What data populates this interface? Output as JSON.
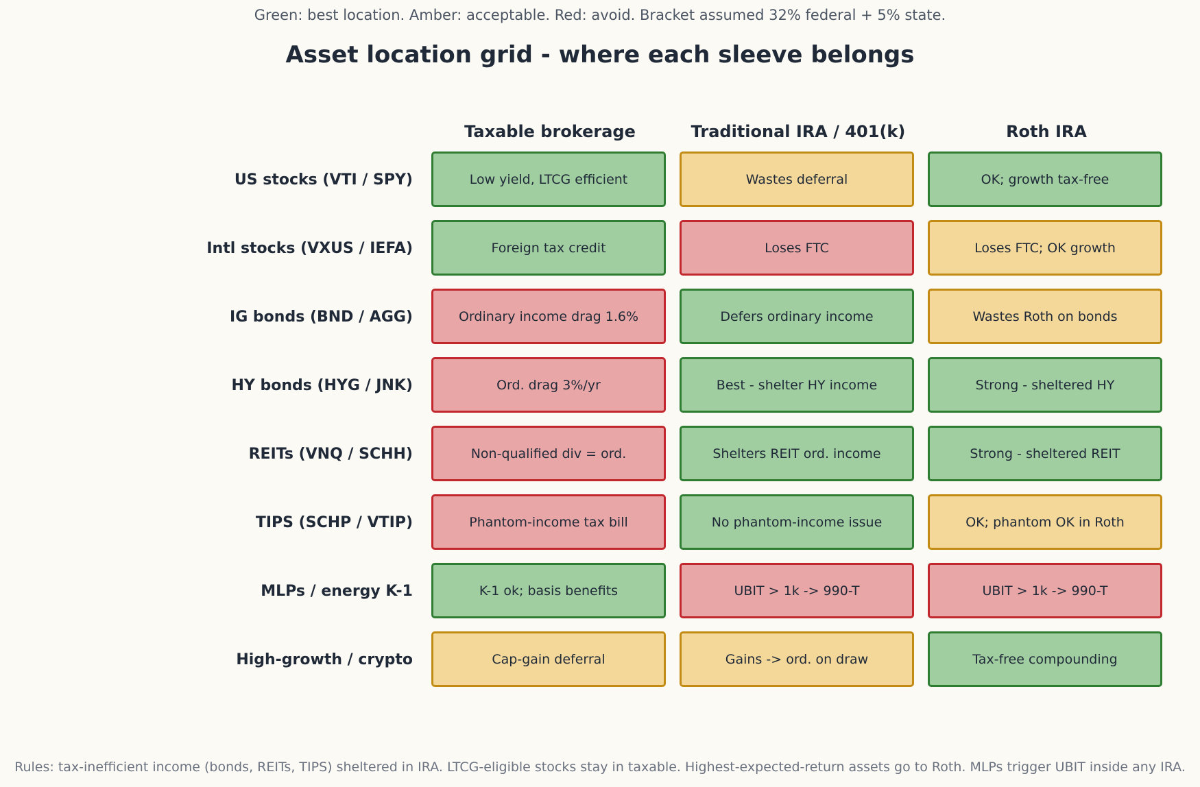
{
  "legend_note": "Green: best location.  Amber: acceptable.  Red: avoid.  Bracket assumed 32% federal + 5% state.",
  "title": "Asset location grid - where each sleeve belongs",
  "columns": [
    "Taxable brokerage",
    "Traditional IRA / 401(k)",
    "Roth IRA"
  ],
  "status_colors": {
    "green": "#a0cea1",
    "amber": "#f3d899",
    "red": "#e8a6a6"
  },
  "rows": [
    {
      "label": "US stocks (VTI / SPY)",
      "cells": [
        {
          "text": "Low yield, LTCG efficient",
          "status": "green"
        },
        {
          "text": "Wastes deferral",
          "status": "amber"
        },
        {
          "text": "OK; growth tax-free",
          "status": "green"
        }
      ]
    },
    {
      "label": "Intl stocks (VXUS / IEFA)",
      "cells": [
        {
          "text": "Foreign tax credit",
          "status": "green"
        },
        {
          "text": "Loses FTC",
          "status": "red"
        },
        {
          "text": "Loses FTC; OK growth",
          "status": "amber"
        }
      ]
    },
    {
      "label": "IG bonds (BND / AGG)",
      "cells": [
        {
          "text": "Ordinary income drag 1.6%",
          "status": "red"
        },
        {
          "text": "Defers ordinary income",
          "status": "green"
        },
        {
          "text": "Wastes Roth on bonds",
          "status": "amber"
        }
      ]
    },
    {
      "label": "HY bonds (HYG / JNK)",
      "cells": [
        {
          "text": "Ord. drag 3%/yr",
          "status": "red"
        },
        {
          "text": "Best - shelter HY income",
          "status": "green"
        },
        {
          "text": "Strong - sheltered HY",
          "status": "green"
        }
      ]
    },
    {
      "label": "REITs (VNQ / SCHH)",
      "cells": [
        {
          "text": "Non-qualified div = ord.",
          "status": "red"
        },
        {
          "text": "Shelters REIT ord. income",
          "status": "green"
        },
        {
          "text": "Strong - sheltered REIT",
          "status": "green"
        }
      ]
    },
    {
      "label": "TIPS (SCHP / VTIP)",
      "cells": [
        {
          "text": "Phantom-income tax bill",
          "status": "red"
        },
        {
          "text": "No phantom-income issue",
          "status": "green"
        },
        {
          "text": "OK; phantom OK in Roth",
          "status": "amber"
        }
      ]
    },
    {
      "label": "MLPs / energy K-1",
      "cells": [
        {
          "text": "K-1 ok; basis benefits",
          "status": "green"
        },
        {
          "text": "UBIT > 1k -> 990-T",
          "status": "red"
        },
        {
          "text": "UBIT > 1k -> 990-T",
          "status": "red"
        }
      ]
    },
    {
      "label": "High-growth / crypto",
      "cells": [
        {
          "text": "Cap-gain deferral",
          "status": "amber"
        },
        {
          "text": "Gains -> ord. on draw",
          "status": "amber"
        },
        {
          "text": "Tax-free compounding",
          "status": "green"
        }
      ]
    }
  ],
  "rules_note": "Rules: tax-inefficient income (bonds, REITs, TIPS) sheltered in IRA.  LTCG-eligible stocks stay in taxable.  Highest-expected-return assets go to Roth.  MLPs trigger UBIT inside any IRA."
}
